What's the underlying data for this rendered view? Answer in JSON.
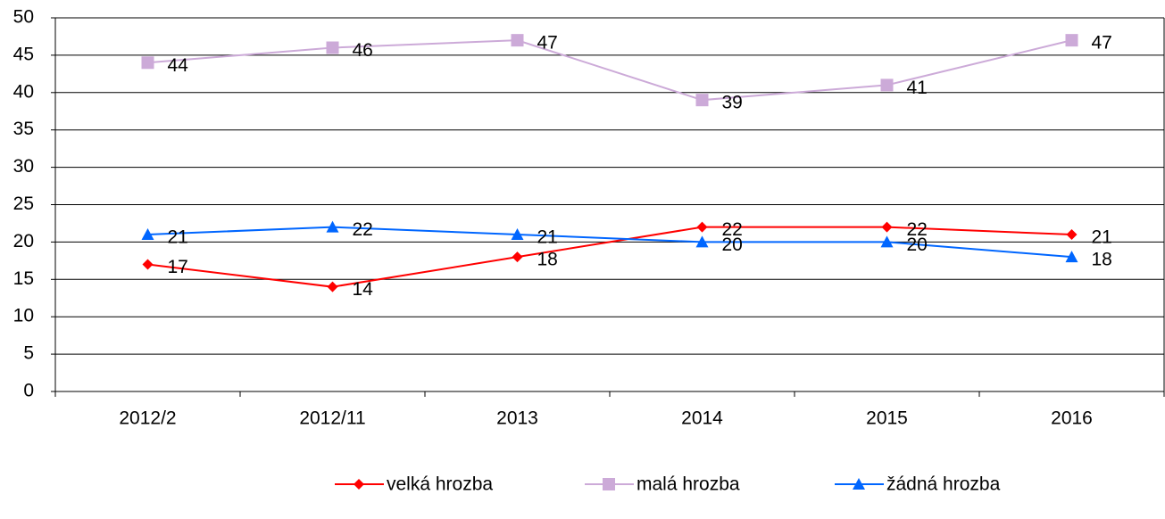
{
  "chart_data": {
    "type": "line",
    "categories": [
      "2012/2",
      "2012/11",
      "2013",
      "2014",
      "2015",
      "2016"
    ],
    "series": [
      {
        "name": "velká hrozba",
        "color": "#ff0000",
        "marker": "diamond",
        "values": [
          17,
          14,
          18,
          22,
          22,
          21
        ]
      },
      {
        "name": "malá hrozba",
        "color": "#ccaad8",
        "marker": "square",
        "values": [
          44,
          46,
          47,
          39,
          41,
          47
        ]
      },
      {
        "name": "žádná hrozba",
        "color": "#0066ff",
        "marker": "triangle",
        "values": [
          21,
          22,
          21,
          20,
          20,
          18
        ]
      }
    ],
    "ylim": [
      0,
      50
    ],
    "yticks": [
      0,
      5,
      10,
      15,
      20,
      25,
      30,
      35,
      40,
      45,
      50
    ],
    "grid": true,
    "legend": "bottom"
  }
}
